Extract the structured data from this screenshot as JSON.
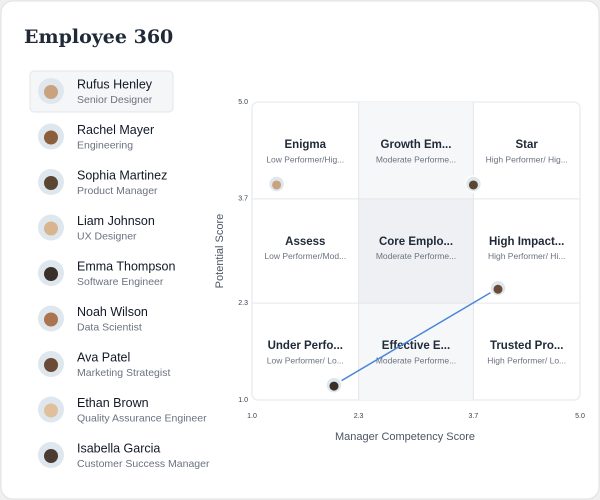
{
  "header": {
    "title": "Employee 360"
  },
  "employees": [
    {
      "name": "Rufus Henley",
      "role": "Senior Designer"
    },
    {
      "name": "Rachel Mayer",
      "role": "Engineering"
    },
    {
      "name": "Sophia Martinez",
      "role": "Product Manager"
    },
    {
      "name": "Liam Johnson",
      "role": "UX Designer"
    },
    {
      "name": "Emma Thompson",
      "role": "Software Engineer"
    },
    {
      "name": "Noah Wilson",
      "role": "Data Scientist"
    },
    {
      "name": "Ava Patel",
      "role": "Marketing Strategist"
    },
    {
      "name": "Ethan Brown",
      "role": "Quality Assurance Engineer"
    },
    {
      "name": "Isabella Garcia",
      "role": "Customer Success Manager"
    }
  ],
  "chart_data": {
    "type": "scatter",
    "xlabel": "Manager Competency Score",
    "ylabel": "Potential  Score",
    "xlim": [
      1.0,
      5.0
    ],
    "ylim": [
      1.0,
      5.0
    ],
    "xticks": [
      {
        "value": 1.0,
        "label": "1.0"
      },
      2.3,
      3.7,
      {
        "value": 5.0,
        "label": "5.0"
      }
    ],
    "yticks": [
      {
        "value": 1.0,
        "label": "1.0"
      },
      2.3,
      3.7,
      {
        "value": 5.0,
        "label": "5.0"
      }
    ],
    "cells": [
      [
        {
          "title": "Enigma",
          "subtitle": "Low Performer/Hig..."
        },
        {
          "title": "Growth Em...",
          "subtitle": "Moderate Performe..."
        },
        {
          "title": "Star",
          "subtitle": "High Performer/ Hig..."
        }
      ],
      [
        {
          "title": "Assess",
          "subtitle": "Low Performer/Mod..."
        },
        {
          "title": "Core Emplo...",
          "subtitle": "Moderate Performe..."
        },
        {
          "title": "High Impact...",
          "subtitle": "High Performer/ Hi..."
        }
      ],
      [
        {
          "title": "Under Perfo...",
          "subtitle": "Low Performer/ Lo..."
        },
        {
          "title": "Effective E...",
          "subtitle": "Moderate Performe..."
        },
        {
          "title": "Trusted Pro...",
          "subtitle": "High Performer/ Lo..."
        }
      ]
    ],
    "x": [
      1.3,
      3.7,
      2.0,
      4.0
    ],
    "y": [
      3.9,
      3.9,
      1.2,
      2.5
    ],
    "color": "#4a86d8"
  }
}
